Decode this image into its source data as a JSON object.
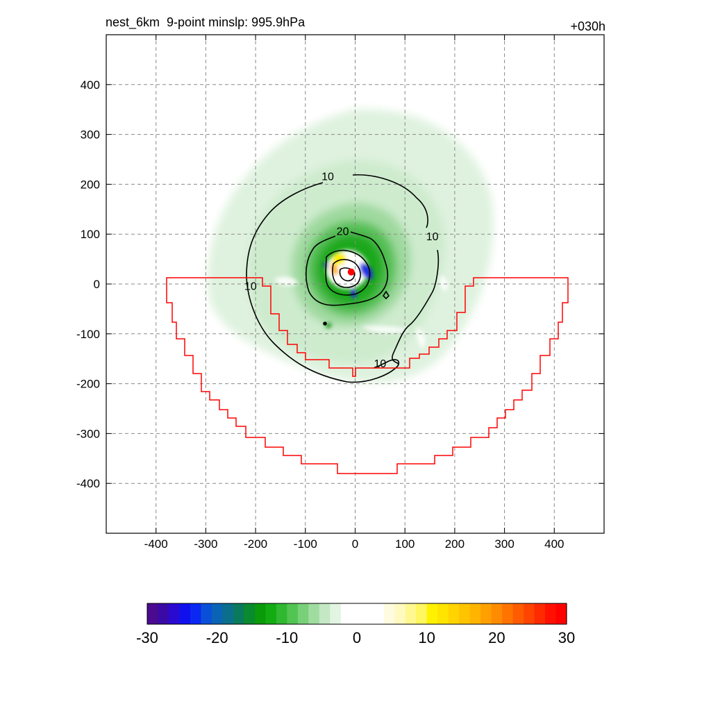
{
  "header": {
    "title_left": "nest_6km  9-point minslp: 995.9hPa",
    "title_right": "+030h"
  },
  "chart_data": {
    "type": "contour",
    "x_ticks": [
      -400,
      -300,
      -200,
      -100,
      0,
      100,
      200,
      300,
      400
    ],
    "y_ticks": [
      400,
      300,
      200,
      100,
      0,
      -100,
      -200,
      -300,
      -400
    ],
    "xlim": [
      -500,
      500
    ],
    "ylim": [
      -500,
      500
    ],
    "grid": true,
    "contour_labels": [
      {
        "text": "10",
        "x": -55,
        "y": 215
      },
      {
        "text": "10",
        "x": 155,
        "y": 95
      },
      {
        "text": "10",
        "x": -210,
        "y": -5
      },
      {
        "text": "10",
        "x": 50,
        "y": -160
      },
      {
        "text": "20",
        "x": -25,
        "y": 105
      }
    ],
    "center_marker": {
      "x": -8,
      "y": 24,
      "color": "#ff0000"
    },
    "colorbar": {
      "ticks": [
        "-30",
        "-20",
        "-10",
        "0",
        "10",
        "20",
        "30"
      ],
      "range": [
        -30,
        30
      ],
      "colors": [
        "#4b0a8f",
        "#3a0aa6",
        "#2a0ad0",
        "#1010ee",
        "#0a28f2",
        "#0a4fd8",
        "#0a63b4",
        "#0a6e8c",
        "#0a7a5c",
        "#0a8a2e",
        "#0a9a0a",
        "#12ac12",
        "#30b830",
        "#52c452",
        "#78d078",
        "#a0dca0",
        "#c4e8c4",
        "#e2f4e2",
        "#ffffff",
        "#ffffff",
        "#ffffff",
        "#ffffff",
        "#fffbe0",
        "#fffac0",
        "#fff890",
        "#fff660",
        "#fff200",
        "#ffe400",
        "#ffd400",
        "#ffc400",
        "#ffb400",
        "#ffa000",
        "#ff8c00",
        "#ff7400",
        "#ff5c00",
        "#ff4400",
        "#ff2a00",
        "#ff1000",
        "#ff0000"
      ]
    }
  }
}
